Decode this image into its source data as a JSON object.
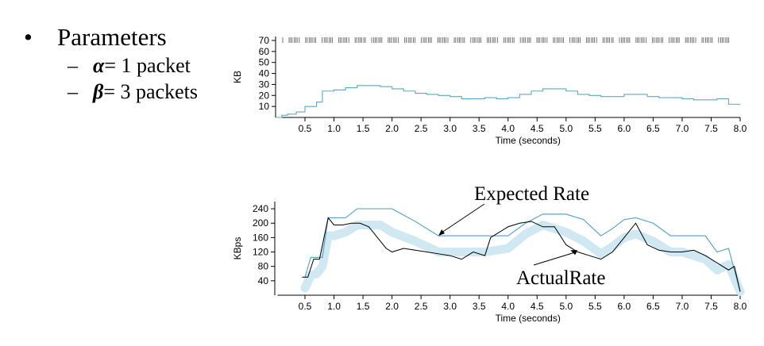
{
  "bullets": {
    "main": "Parameters",
    "marker": "•",
    "items": [
      {
        "dash": "–",
        "symbol": "α",
        "text": "= 1 packet"
      },
      {
        "dash": "–",
        "symbol": "β",
        "text": "= 3 packets"
      }
    ]
  },
  "chart_data": [
    {
      "type": "line",
      "title": "",
      "xlabel": "Time (seconds)",
      "ylabel": "KB",
      "xlim": [
        0,
        8.0
      ],
      "ylim": [
        0,
        70
      ],
      "xticks": [
        "0.5",
        "1.0",
        "1.5",
        "2.0",
        "2.5",
        "3.0",
        "3.5",
        "4.0",
        "4.5",
        "5.0",
        "5.5",
        "6.0",
        "6.5",
        "7.0",
        "7.5",
        "8.0"
      ],
      "yticks": [
        "10",
        "20",
        "30",
        "40",
        "50",
        "60",
        "70"
      ],
      "grid": false,
      "line_color": "#5ba8c8",
      "series": [
        {
          "x": [
            0.0,
            0.1,
            0.2,
            0.35,
            0.5,
            0.7,
            0.8,
            1.0,
            1.2,
            1.4,
            1.6,
            1.8,
            2.0,
            2.2,
            2.4,
            2.6,
            2.8,
            3.0,
            3.2,
            3.4,
            3.6,
            3.8,
            4.0,
            4.2,
            4.4,
            4.6,
            4.8,
            5.0,
            5.2,
            5.4,
            5.6,
            5.8,
            6.0,
            6.2,
            6.4,
            6.6,
            6.8,
            7.0,
            7.2,
            7.4,
            7.6,
            7.8,
            8.0
          ],
          "y": [
            0,
            2,
            3,
            5,
            10,
            14,
            24,
            25,
            27,
            29,
            29,
            28,
            26,
            24,
            22,
            21,
            20,
            19,
            17,
            17,
            18,
            17,
            18,
            21,
            24,
            26,
            26,
            24,
            21,
            20,
            19,
            19,
            21,
            21,
            19,
            18,
            18,
            17,
            16,
            16,
            17,
            12,
            12
          ]
        }
      ],
      "packet_ticks_y": 70,
      "packet_ticks_description": "dense vertical tick marks along the top of the plot"
    },
    {
      "type": "line",
      "title": "",
      "xlabel": "Time (seconds)",
      "ylabel": "KBps",
      "xlim": [
        0,
        8.0
      ],
      "ylim": [
        0,
        260
      ],
      "xticks": [
        "0.5",
        "1.0",
        "1.5",
        "2.0",
        "2.5",
        "3.0",
        "3.5",
        "4.0",
        "4.5",
        "5.0",
        "5.5",
        "6.0",
        "6.5",
        "7.0",
        "7.5",
        "8.0"
      ],
      "yticks": [
        "40",
        "80",
        "120",
        "160",
        "200",
        "240"
      ],
      "grid": false,
      "annotations": [
        {
          "text": "Expected Rate",
          "points_to": {
            "x": 2.8,
            "y": 165
          }
        },
        {
          "text": "ActualRate",
          "points_to": {
            "x": 4.8,
            "y": 125
          }
        }
      ],
      "series": [
        {
          "name": "Expected Rate",
          "color": "#5ba8c8",
          "x": [
            0.5,
            0.6,
            0.7,
            0.8,
            0.9,
            1.0,
            1.2,
            1.4,
            1.6,
            1.8,
            2.0,
            2.4,
            2.8,
            3.2,
            3.6,
            4.0,
            4.3,
            4.6,
            5.0,
            5.3,
            5.6,
            5.8,
            6.0,
            6.2,
            6.5,
            6.8,
            7.0,
            7.2,
            7.4,
            7.6,
            7.8,
            8.0
          ],
          "y": [
            50,
            105,
            105,
            105,
            215,
            215,
            215,
            240,
            240,
            240,
            240,
            205,
            165,
            165,
            165,
            165,
            200,
            225,
            225,
            210,
            165,
            185,
            210,
            215,
            200,
            165,
            165,
            165,
            165,
            120,
            130,
            10
          ]
        },
        {
          "name": "ActualRate",
          "color": "#000000",
          "x": [
            0.45,
            0.55,
            0.65,
            0.75,
            0.9,
            1.0,
            1.15,
            1.3,
            1.45,
            1.6,
            1.75,
            1.9,
            2.0,
            2.2,
            2.4,
            2.6,
            2.8,
            3.0,
            3.2,
            3.4,
            3.6,
            3.7,
            3.8,
            4.0,
            4.2,
            4.4,
            4.6,
            4.8,
            5.0,
            5.2,
            5.4,
            5.6,
            5.8,
            6.0,
            6.2,
            6.4,
            6.6,
            6.8,
            7.0,
            7.2,
            7.4,
            7.6,
            7.8,
            7.9,
            8.0
          ],
          "y": [
            50,
            50,
            100,
            100,
            215,
            195,
            195,
            200,
            200,
            190,
            160,
            130,
            120,
            130,
            125,
            120,
            115,
            110,
            100,
            120,
            110,
            160,
            170,
            190,
            200,
            205,
            190,
            190,
            140,
            120,
            110,
            100,
            120,
            160,
            200,
            140,
            125,
            120,
            120,
            125,
            110,
            90,
            70,
            80,
            10
          ]
        },
        {
          "name": "expected band",
          "color": "#cfe8f2",
          "x": [
            0.5,
            0.6,
            0.7,
            0.8,
            0.9,
            1.0,
            1.2,
            1.4,
            1.6,
            1.8,
            2.0,
            2.4,
            2.8,
            3.2,
            3.6,
            4.0,
            4.3,
            4.6,
            5.0,
            5.3,
            5.6,
            5.8,
            6.0,
            6.2,
            6.5,
            6.8,
            7.0,
            7.2,
            7.4,
            7.6,
            7.8,
            8.0
          ],
          "y": [
            20,
            55,
            60,
            80,
            165,
            165,
            175,
            195,
            195,
            195,
            175,
            150,
            120,
            120,
            120,
            130,
            170,
            195,
            175,
            150,
            115,
            135,
            160,
            170,
            150,
            120,
            120,
            110,
            100,
            70,
            85,
            10
          ]
        }
      ]
    }
  ]
}
